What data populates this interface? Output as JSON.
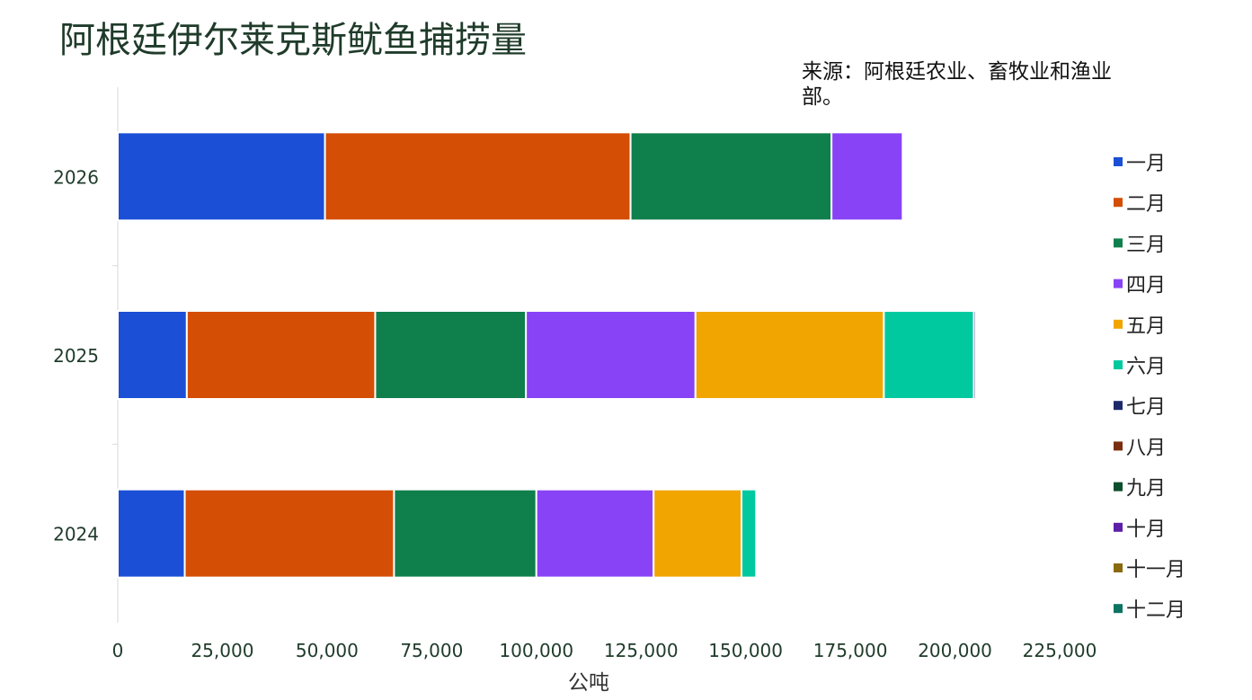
{
  "chart_data": {
    "type": "bar",
    "orientation": "horizontal",
    "stacked": true,
    "title": "阿根廷伊尔莱克斯鱿鱼捕捞量",
    "source_note": "来源：阿根廷农业、畜牧业和渔业部。",
    "xlabel": "公吨",
    "ylabel": "",
    "categories": [
      "2024",
      "2025",
      "2026"
    ],
    "xlim": [
      0,
      225000
    ],
    "x_ticks": [
      "0",
      "25,000",
      "50,000",
      "75,000",
      "100,000",
      "125,000",
      "150,000",
      "175,000",
      "200,000",
      "225,000"
    ],
    "grid": false,
    "legend_position": "right",
    "series": [
      {
        "name": "一月",
        "color": "#1a4fd6",
        "values": [
          16000,
          16500,
          49500
        ]
      },
      {
        "name": "二月",
        "color": "#d44e05",
        "values": [
          50000,
          45000,
          73000
        ]
      },
      {
        "name": "三月",
        "color": "#0f7f4c",
        "values": [
          34000,
          36000,
          48000
        ]
      },
      {
        "name": "四月",
        "color": "#8743f5",
        "values": [
          28000,
          40500,
          17000
        ]
      },
      {
        "name": "五月",
        "color": "#f0a500",
        "values": [
          21000,
          45000,
          0
        ]
      },
      {
        "name": "六月",
        "color": "#00c9a0",
        "values": [
          3500,
          21500,
          0
        ]
      },
      {
        "name": "七月",
        "color": "#1c2a6b",
        "values": [
          0,
          500,
          0
        ]
      },
      {
        "name": "八月",
        "color": "#7a2e0e",
        "values": [
          0,
          0,
          0
        ]
      },
      {
        "name": "九月",
        "color": "#0b4d2c",
        "values": [
          0,
          0,
          0
        ]
      },
      {
        "name": "十月",
        "color": "#5d1fa8",
        "values": [
          0,
          0,
          0
        ]
      },
      {
        "name": "十一月",
        "color": "#8a6a10",
        "values": [
          0,
          0,
          0
        ]
      },
      {
        "name": "十二月",
        "color": "#0d7363",
        "values": [
          0,
          0,
          0
        ]
      }
    ]
  }
}
